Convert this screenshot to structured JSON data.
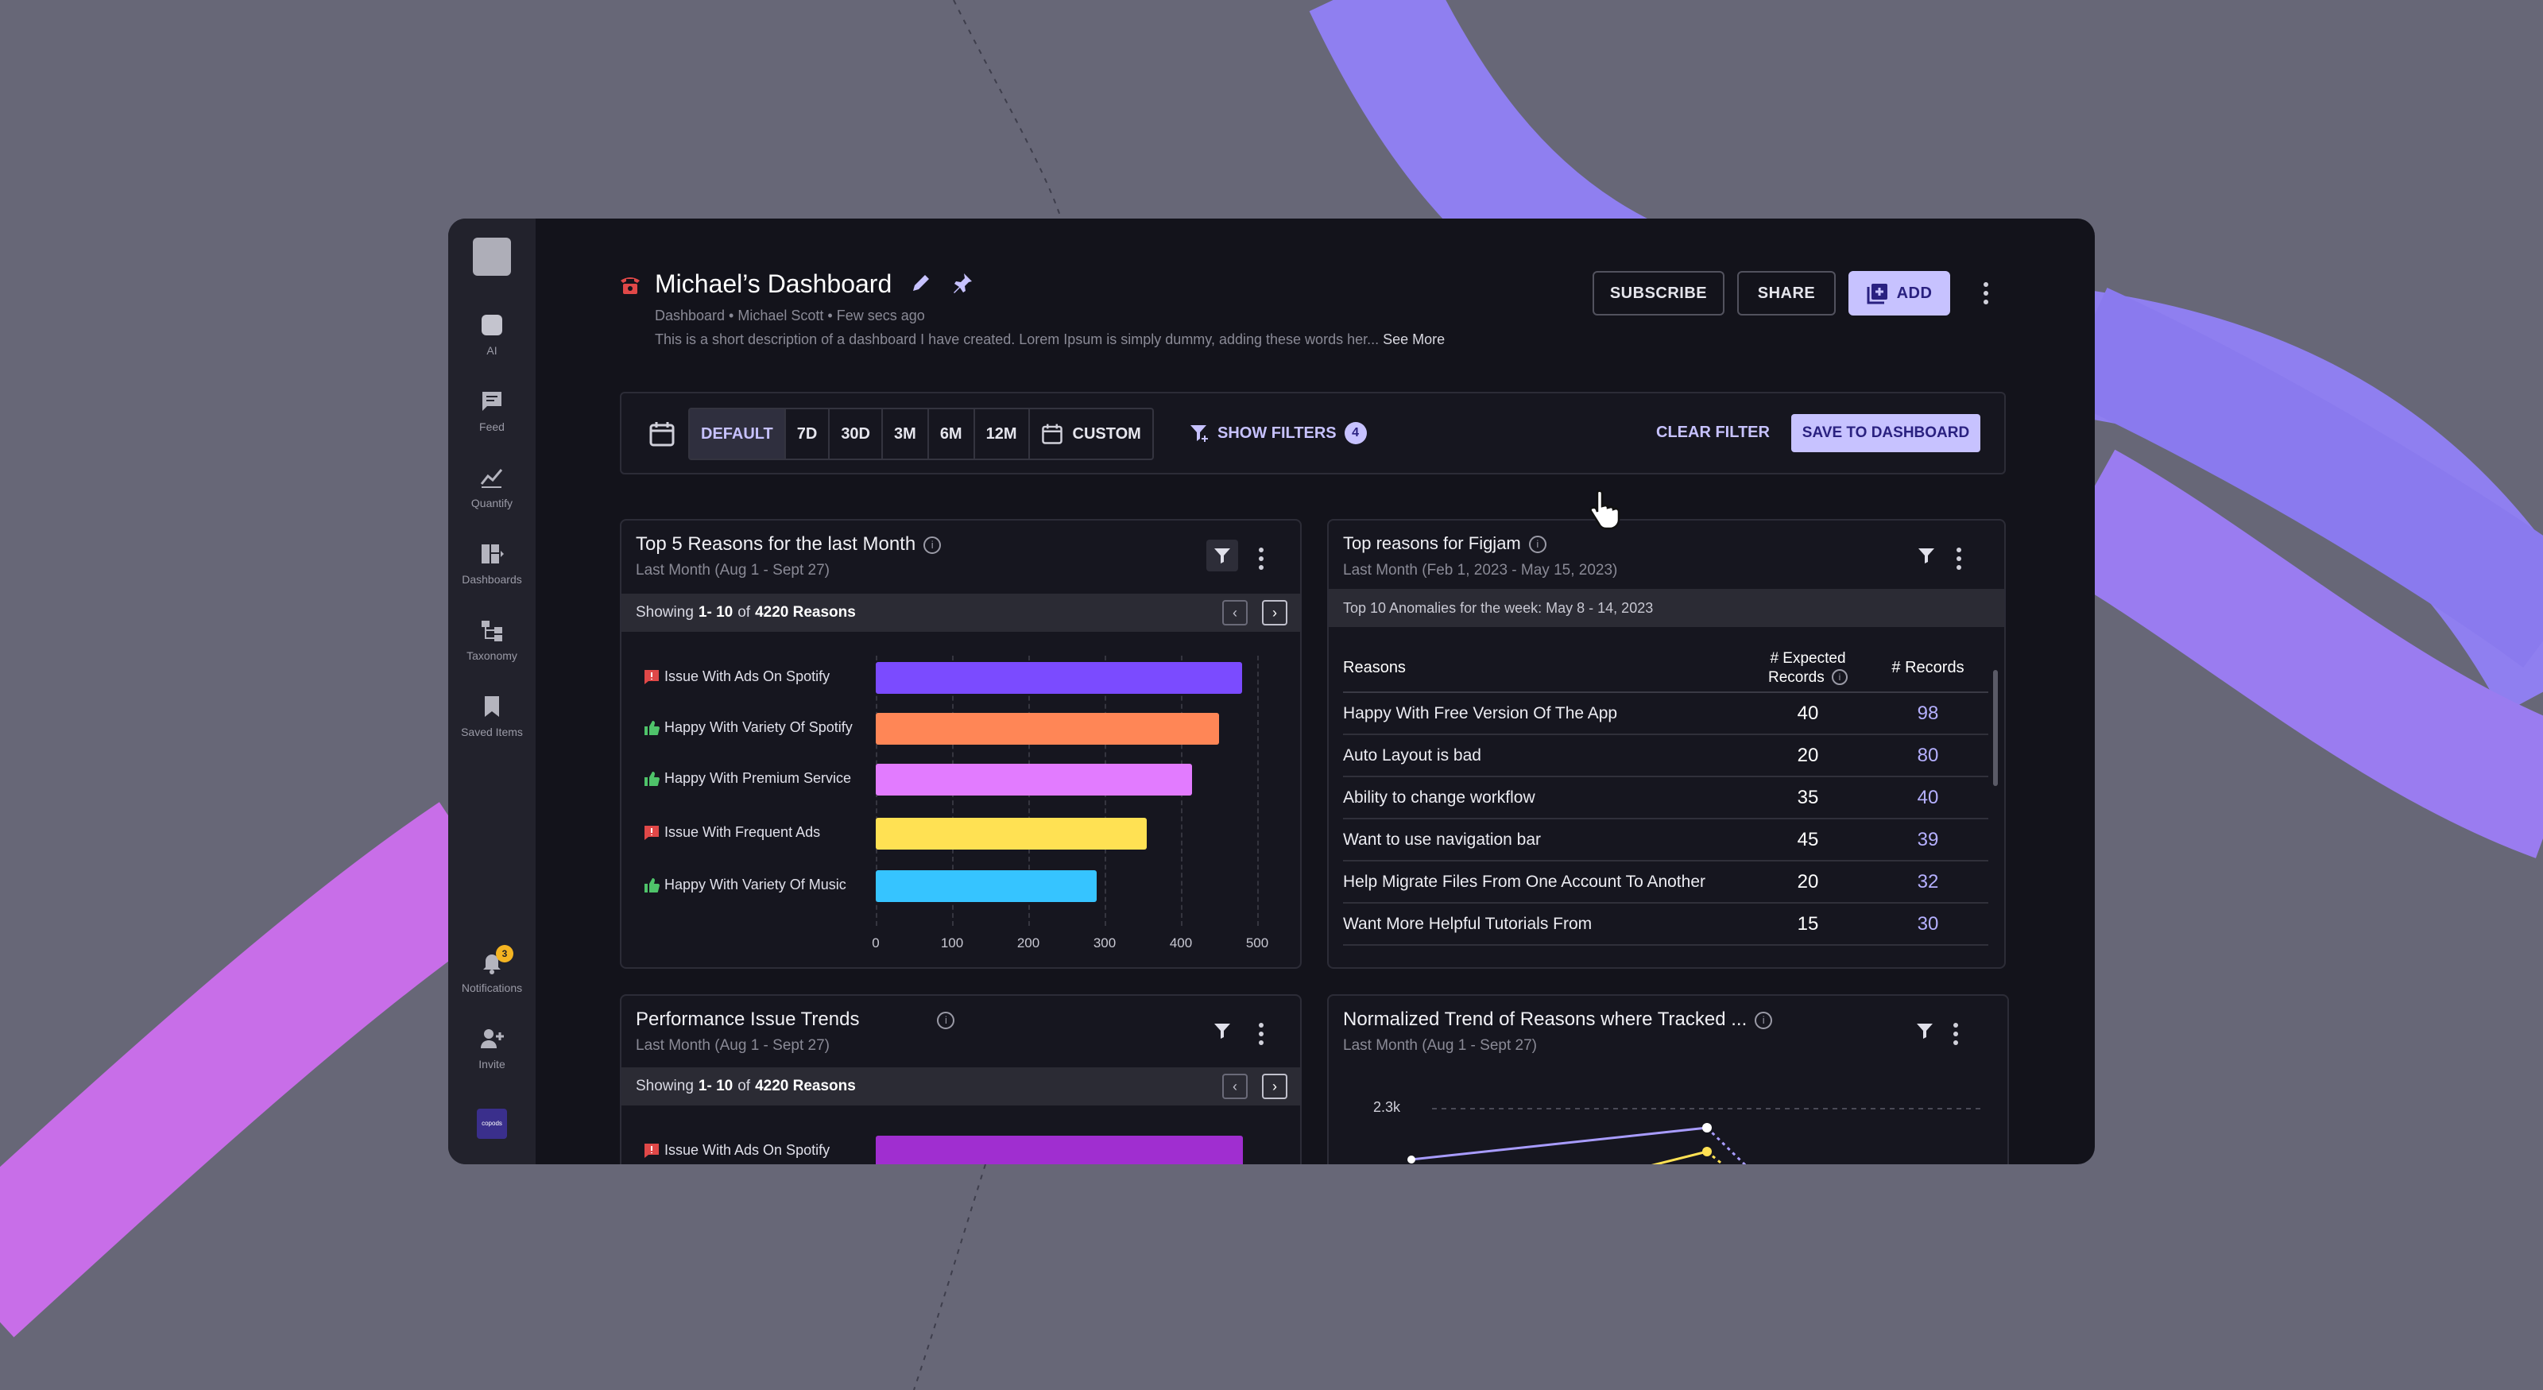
{
  "colors": {
    "accent": "#c7c2ff",
    "background": "#676777",
    "panel": "#13131b"
  },
  "sidebar": {
    "items": [
      {
        "label": "AI",
        "icon": "ai-icon"
      },
      {
        "label": "Feed",
        "icon": "feed-icon"
      },
      {
        "label": "Quantify",
        "icon": "quantify-icon"
      },
      {
        "label": "Dashboards",
        "icon": "dashboards-icon"
      },
      {
        "label": "Taxonomy",
        "icon": "taxonomy-icon"
      },
      {
        "label": "Saved Items",
        "icon": "bookmark-icon"
      }
    ],
    "notifications": {
      "label": "Notifications",
      "count": "3"
    },
    "invite": {
      "label": "Invite"
    },
    "brand": "copods"
  },
  "header": {
    "title": "Michael’s Dashboard",
    "meta": "Dashboard • Michael Scott • Few secs ago",
    "description": "This is a short description of a dashboard I have created. Lorem Ipsum is simply dummy, adding these words her...",
    "see_more": "See More",
    "subscribe": "SUBSCRIBE",
    "share": "SHARE",
    "add": "ADD"
  },
  "filterbar": {
    "ranges": [
      "DEFAULT",
      "7D",
      "30D",
      "3M",
      "6M",
      "12M"
    ],
    "custom": "CUSTOM",
    "selected": "DEFAULT",
    "show_filters": "SHOW FILTERS",
    "filter_count": "4",
    "clear": "CLEAR FILTER",
    "save": "SAVE TO DASHBOARD"
  },
  "card1": {
    "title": "Top 5 Reasons for the last Month",
    "subtitle": "Last Month (Aug 1 - Sept 27)",
    "showing_prefix": "Showing",
    "showing_range": "1- 10",
    "showing_of": "of",
    "showing_total": "4220 Reasons"
  },
  "chart_data": {
    "type": "bar",
    "orientation": "horizontal",
    "categories": [
      "Issue With Ads On Spotify",
      "Happy With Variety Of Spotify",
      "Happy With Premium Service",
      "Issue With Frequent Ads",
      "Happy With Variety Of Music"
    ],
    "sentiment": [
      "negative",
      "positive",
      "positive",
      "negative",
      "positive"
    ],
    "values": [
      480,
      450,
      415,
      355,
      290
    ],
    "colors": [
      "#7b4bff",
      "#ff8656",
      "#e27bff",
      "#ffe153",
      "#36c4ff"
    ],
    "xticks": [
      "0",
      "100",
      "200",
      "300",
      "400",
      "500"
    ],
    "xlim": [
      0,
      500
    ],
    "grid": true
  },
  "card2": {
    "title": "Top reasons for Figjam",
    "subtitle": "Last Month (Feb 1, 2023 - May 15, 2023)",
    "strip": "Top 10 Anomalies for the week: May 8 - 14, 2023",
    "columns": [
      "Reasons",
      "# Expected Records",
      "# Records"
    ],
    "rows": [
      [
        "Happy With Free Version Of The App",
        "40",
        "98"
      ],
      [
        "Auto Layout is bad",
        "20",
        "80"
      ],
      [
        "Ability to change workflow",
        "35",
        "40"
      ],
      [
        "Want to use navigation bar",
        "45",
        "39"
      ],
      [
        "Help Migrate Files From One Account To Another",
        "20",
        "32"
      ],
      [
        "Want More Helpful Tutorials From",
        "15",
        "30"
      ]
    ]
  },
  "card3": {
    "title": "Performance Issue Trends",
    "subtitle": "Last Month (Aug 1 - Sept 27)",
    "showing_prefix": "Showing",
    "showing_range": "1- 10",
    "showing_of": "of",
    "showing_total": "4220 Reasons",
    "first_bar": "Issue With Ads On Spotify",
    "first_bar_color": "#a02ed0"
  },
  "card4": {
    "title": "Normalized Trend of Reasons where Tracked ...",
    "subtitle": "Last Month (Aug 1 - Sept 27)",
    "ytick": "2.3k"
  }
}
